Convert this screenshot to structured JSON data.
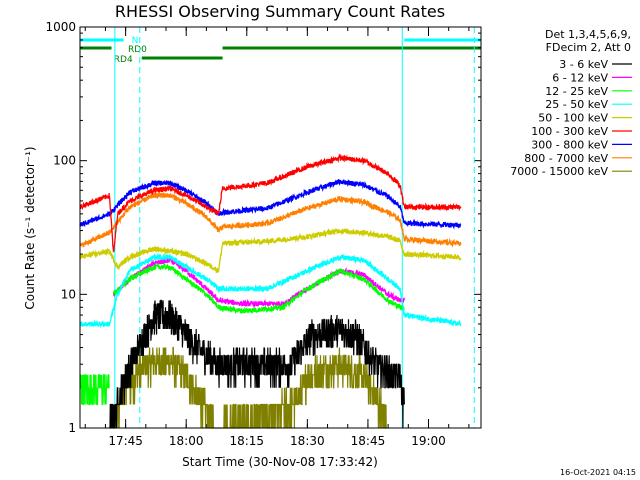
{
  "chart_data": {
    "type": "line",
    "title": "RHESSI Observing Summary Count Rates",
    "xlabel": "Start Time (30-Nov-08 17:33:42)",
    "ylabel": "Count Rate (s⁻¹ detector⁻¹)",
    "y_scale": "log",
    "ylim": [
      1,
      1000
    ],
    "y_ticks": [
      {
        "value": 1,
        "label": "1"
      },
      {
        "value": 10,
        "label": "10"
      },
      {
        "value": 100,
        "label": "100"
      },
      {
        "value": 1000,
        "label": "1000"
      }
    ],
    "xlim": [
      "17:33:42",
      "19:13:00"
    ],
    "x_ticks": [
      {
        "value": "17:45",
        "label": "17:45"
      },
      {
        "value": "18:00",
        "label": "18:00"
      },
      {
        "value": "18:15",
        "label": "18:15"
      },
      {
        "value": "18:30",
        "label": "18:30"
      },
      {
        "value": "18:45",
        "label": "18:45"
      },
      {
        "value": "19:00",
        "label": "19:00"
      }
    ],
    "legend_header": [
      "Det 1,3,4,5,6,9,",
      "FDecim 2, Att 0"
    ],
    "legend_position": "right",
    "series": [
      {
        "name": "3 - 6 keV",
        "color": "#000000",
        "points": [
          [
            "17:41",
            "1"
          ],
          [
            "17:45",
            "2.5"
          ],
          [
            "17:52",
            "7"
          ],
          [
            "17:56",
            "7"
          ],
          [
            "18:00",
            "5"
          ],
          [
            "18:03",
            "4"
          ],
          [
            "18:08",
            "3"
          ],
          [
            "18:26",
            "3"
          ],
          [
            "18:31",
            "5"
          ],
          [
            "18:38",
            "5.5"
          ],
          [
            "18:42",
            "5"
          ],
          [
            "18:47",
            "3"
          ],
          [
            "18:51",
            "2.5"
          ],
          [
            "18:53",
            "2.5"
          ],
          [
            "18:54",
            "1.4"
          ]
        ]
      },
      {
        "name": "6 - 12 keV",
        "color": "#ff00ff",
        "points": [
          [
            "17:42",
            "10"
          ],
          [
            "17:46",
            "13"
          ],
          [
            "17:52",
            "17"
          ],
          [
            "17:56",
            "18"
          ],
          [
            "18:00",
            "15"
          ],
          [
            "18:05",
            "11"
          ],
          [
            "18:08",
            "9"
          ],
          [
            "18:14",
            "8.5"
          ],
          [
            "18:24",
            "8.5"
          ],
          [
            "18:30",
            "11"
          ],
          [
            "18:38",
            "15"
          ],
          [
            "18:44",
            "14"
          ],
          [
            "18:50",
            "10"
          ],
          [
            "18:53",
            "9"
          ],
          [
            "18:54",
            "9"
          ]
        ]
      },
      {
        "name": "12 - 25 keV",
        "color": "#00ff00",
        "points": [
          [
            "17:42",
            "10"
          ],
          [
            "17:46",
            "13"
          ],
          [
            "17:52",
            "16"
          ],
          [
            "17:56",
            "16"
          ],
          [
            "18:00",
            "13"
          ],
          [
            "18:05",
            "10"
          ],
          [
            "18:08",
            "8"
          ],
          [
            "18:14",
            "7.5"
          ],
          [
            "18:24",
            "8"
          ],
          [
            "18:30",
            "11"
          ],
          [
            "18:38",
            "15"
          ],
          [
            "18:44",
            "13"
          ],
          [
            "18:50",
            "9"
          ],
          [
            "18:53",
            "8"
          ],
          [
            "18:54",
            "8"
          ]
        ]
      },
      {
        "name": "25 - 50 keV",
        "color": "#00ffff",
        "points": [
          [
            "17:33:42",
            "6"
          ],
          [
            "17:41",
            "6"
          ],
          [
            "17:43",
            "10"
          ],
          [
            "17:46",
            "15"
          ],
          [
            "17:52",
            "19"
          ],
          [
            "17:56",
            "19"
          ],
          [
            "18:00",
            "16"
          ],
          [
            "18:05",
            "13"
          ],
          [
            "18:08",
            "11"
          ],
          [
            "18:20",
            "11"
          ],
          [
            "18:30",
            "15"
          ],
          [
            "18:38",
            "19"
          ],
          [
            "18:44",
            "18"
          ],
          [
            "18:50",
            "13"
          ],
          [
            "18:53",
            "11"
          ],
          [
            "18:54",
            "7"
          ],
          [
            "19:08",
            "6"
          ]
        ]
      },
      {
        "name": "50 - 100 keV",
        "color": "#cccc00",
        "points": [
          [
            "17:33:42",
            "19"
          ],
          [
            "17:41",
            "21"
          ],
          [
            "17:43",
            "16"
          ],
          [
            "17:46",
            "19"
          ],
          [
            "17:52",
            "22"
          ],
          [
            "17:56",
            "21"
          ],
          [
            "18:00",
            "20"
          ],
          [
            "18:05",
            "17"
          ],
          [
            "18:08",
            "15"
          ],
          [
            "18:09",
            "24"
          ],
          [
            "18:20",
            "25"
          ],
          [
            "18:30",
            "27"
          ],
          [
            "18:38",
            "30"
          ],
          [
            "18:44",
            "29"
          ],
          [
            "18:50",
            "27"
          ],
          [
            "18:53",
            "25"
          ],
          [
            "18:54",
            "20"
          ],
          [
            "19:08",
            "19"
          ]
        ]
      },
      {
        "name": "100 - 300 keV",
        "color": "#ff0000",
        "points": [
          [
            "17:33:42",
            "45"
          ],
          [
            "17:41",
            "55"
          ],
          [
            "17:42",
            "20"
          ],
          [
            "17:43",
            "40"
          ],
          [
            "17:46",
            "50"
          ],
          [
            "17:52",
            "60"
          ],
          [
            "17:56",
            "62"
          ],
          [
            "18:00",
            "55"
          ],
          [
            "18:05",
            "45"
          ],
          [
            "18:08",
            "40"
          ],
          [
            "18:09",
            "62"
          ],
          [
            "18:20",
            "68"
          ],
          [
            "18:30",
            "90"
          ],
          [
            "18:38",
            "105"
          ],
          [
            "18:44",
            "100"
          ],
          [
            "18:50",
            "80"
          ],
          [
            "18:53",
            "65"
          ],
          [
            "18:54",
            "45"
          ],
          [
            "19:08",
            "45"
          ]
        ]
      },
      {
        "name": "300 - 800 keV",
        "color": "#0000ff",
        "points": [
          [
            "17:33:42",
            "33"
          ],
          [
            "17:41",
            "40"
          ],
          [
            "17:46",
            "58"
          ],
          [
            "17:52",
            "68"
          ],
          [
            "17:56",
            "68"
          ],
          [
            "18:00",
            "60"
          ],
          [
            "18:05",
            "48"
          ],
          [
            "18:08",
            "40"
          ],
          [
            "18:09",
            "41"
          ],
          [
            "18:20",
            "44"
          ],
          [
            "18:30",
            "58"
          ],
          [
            "18:38",
            "70"
          ],
          [
            "18:44",
            "66"
          ],
          [
            "18:50",
            "54"
          ],
          [
            "18:53",
            "45"
          ],
          [
            "18:54",
            "34"
          ],
          [
            "19:08",
            "33"
          ]
        ]
      },
      {
        "name": "800 - 7000 keV",
        "color": "#ff8000",
        "points": [
          [
            "17:33:42",
            "23"
          ],
          [
            "17:41",
            "29"
          ],
          [
            "17:46",
            "45"
          ],
          [
            "17:52",
            "55"
          ],
          [
            "17:56",
            "55"
          ],
          [
            "18:00",
            "48"
          ],
          [
            "18:05",
            "38"
          ],
          [
            "18:08",
            "30"
          ],
          [
            "18:09",
            "32"
          ],
          [
            "18:20",
            "34"
          ],
          [
            "18:30",
            "44"
          ],
          [
            "18:38",
            "52"
          ],
          [
            "18:44",
            "49"
          ],
          [
            "18:50",
            "41"
          ],
          [
            "18:53",
            "36"
          ],
          [
            "18:54",
            "26"
          ],
          [
            "19:08",
            "24"
          ]
        ]
      },
      {
        "name": "7000 - 15000 keV",
        "color": "#808000",
        "points": [
          [
            "17:43",
            "1.3"
          ],
          [
            "17:45",
            "2"
          ],
          [
            "17:50",
            "3"
          ],
          [
            "17:56",
            "3.2"
          ],
          [
            "18:00",
            "2.5"
          ],
          [
            "18:04",
            "1.5"
          ],
          [
            "18:08",
            "1"
          ],
          [
            "18:27",
            "1.5"
          ],
          [
            "18:30",
            "2.5"
          ],
          [
            "18:38",
            "3"
          ],
          [
            "18:44",
            "2.5"
          ],
          [
            "18:48",
            "1.5"
          ],
          [
            "18:50",
            "1"
          ]
        ]
      },
      {
        "name": "",
        "color": "#00ff00",
        "points": [
          [
            "17:33:42",
            "2"
          ],
          [
            "17:41",
            "2"
          ]
        ]
      }
    ],
    "flags": [
      {
        "label": "N",
        "color": "#00ffff",
        "intervals": [
          [
            "17:33:42",
            "17:44:30"
          ],
          [
            "18:54",
            "19:13"
          ]
        ]
      },
      {
        "label": "RD0",
        "color": "#008000",
        "intervals": [
          [
            "17:33:42",
            "17:41:30"
          ],
          [
            "18:09",
            "19:13"
          ]
        ]
      },
      {
        "label": "RD4",
        "color": "#008000",
        "intervals": [
          [
            "17:49",
            "18:09"
          ]
        ]
      }
    ],
    "vertical_markers": [
      {
        "time": "17:42:20",
        "color": "#00ffff",
        "style": "solid"
      },
      {
        "time": "17:48:30",
        "color": "#00ffff",
        "style": "dashed"
      },
      {
        "time": "18:53:30",
        "color": "#00ffff",
        "style": "solid"
      },
      {
        "time": "19:11:20",
        "color": "#00ffff",
        "style": "dashed"
      }
    ]
  },
  "footer_timestamp": "16-Oct-2021 04:15"
}
